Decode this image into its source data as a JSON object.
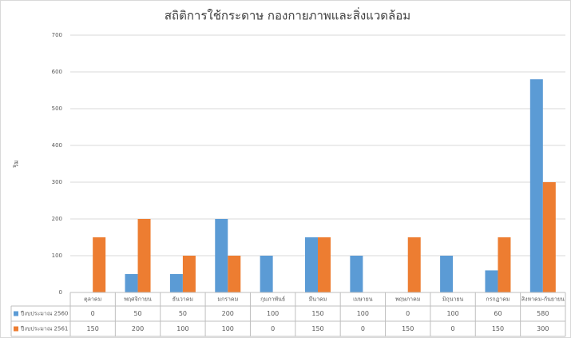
{
  "chart_data": {
    "type": "bar",
    "title": "สถิติการใช้กระดาษ กองกายภาพและสิ่งแวดล้อม",
    "y_label": "ริม",
    "categories": [
      "ตุลาคม",
      "พฤศจิกายน",
      "ธันวาคม",
      "มกราคม",
      "กุมภาพันธ์",
      "มีนาคม",
      "เมษายน",
      "พฤษภาคม",
      "มิถุนายน",
      "กรกฎาคม",
      "สิงหาคม-กันยายน"
    ],
    "series": [
      {
        "name": "ปีงบประมาณ 2560",
        "color": "#5b9bd5",
        "values": [
          0,
          50,
          50,
          200,
          100,
          150,
          100,
          0,
          100,
          60,
          580
        ]
      },
      {
        "name": "ปีงบประมาณ 2561",
        "color": "#ed7d31",
        "values": [
          150,
          200,
          100,
          100,
          0,
          150,
          0,
          150,
          0,
          150,
          300
        ]
      }
    ],
    "ylim": [
      0,
      700
    ],
    "yticks": [
      0,
      100,
      200,
      300,
      400,
      500,
      600,
      700
    ],
    "grid": true,
    "data_table": true
  }
}
